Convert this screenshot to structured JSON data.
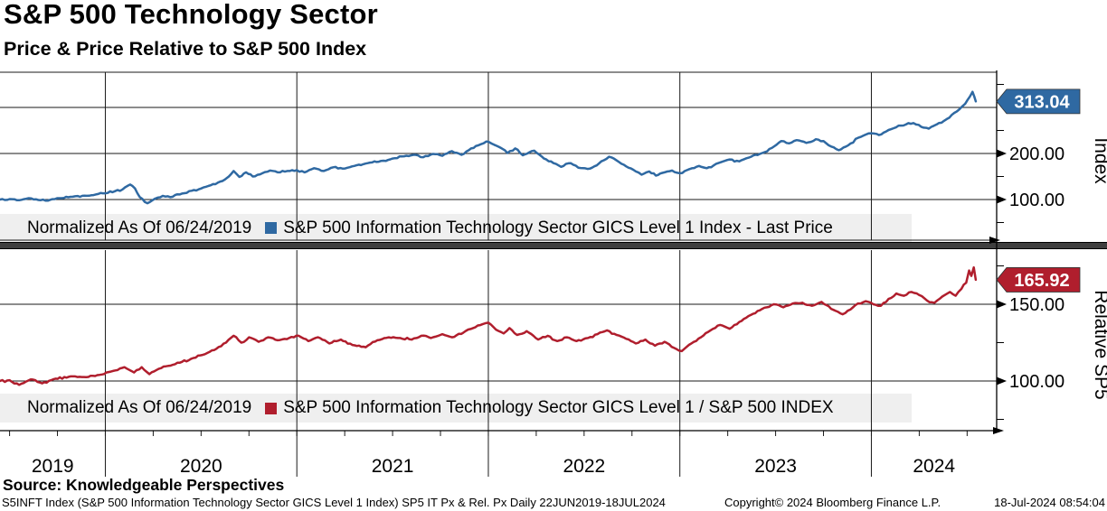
{
  "header": {
    "title": "S&P 500 Technology Sector",
    "subtitle": "Price & Price Relative to S&P 500 Index"
  },
  "chart_data": {
    "type": "line",
    "title": "S&P 500 Technology Sector",
    "subtitle": "Price & Price Relative to S&P 500 Index",
    "x_axis": {
      "year_labels": [
        "2019",
        "2020",
        "2021",
        "2022",
        "2023",
        "2024"
      ],
      "year_boundaries": [
        2020,
        2021,
        2022,
        2023,
        2024
      ],
      "range": [
        2019.45,
        2024.66
      ],
      "period_note": "Daily 22JUN2019-18JUL2024"
    },
    "panels": [
      {
        "id": "price",
        "axis_title": "Index",
        "color": "#2F69A2",
        "legend_normalized": "Normalized As Of 06/24/2019",
        "legend_series": "S&P 500 Information Technology Sector GICS Level 1 Index - Last Price",
        "last_label": "313.04",
        "last_value": 313.04,
        "major_ticks": [
          {
            "value": 100,
            "label": "100.00"
          },
          {
            "value": 200,
            "label": "200.00"
          }
        ],
        "gridlines": [
          100,
          200,
          300
        ],
        "minor_ticks": [
          50,
          150,
          250,
          350
        ],
        "points": [
          [
            2019.45,
            100
          ],
          [
            2019.5,
            101
          ],
          [
            2019.55,
            98.5
          ],
          [
            2019.6,
            103
          ],
          [
            2019.65,
            99
          ],
          [
            2019.7,
            97.5
          ],
          [
            2019.76,
            103
          ],
          [
            2019.83,
            106
          ],
          [
            2019.88,
            108
          ],
          [
            2019.95,
            111
          ],
          [
            2020.0,
            113.5
          ],
          [
            2020.05,
            118
          ],
          [
            2020.09,
            122
          ],
          [
            2020.13,
            132.5
          ],
          [
            2020.155,
            124
          ],
          [
            2020.18,
            105
          ],
          [
            2020.22,
            92
          ],
          [
            2020.26,
            102
          ],
          [
            2020.3,
            108
          ],
          [
            2020.34,
            105
          ],
          [
            2020.4,
            113
          ],
          [
            2020.45,
            119
          ],
          [
            2020.5,
            124
          ],
          [
            2020.55,
            131
          ],
          [
            2020.6,
            139
          ],
          [
            2020.645,
            150
          ],
          [
            2020.67,
            162
          ],
          [
            2020.7,
            149
          ],
          [
            2020.735,
            159
          ],
          [
            2020.77,
            150
          ],
          [
            2020.82,
            157
          ],
          [
            2020.86,
            163
          ],
          [
            2020.9,
            159
          ],
          [
            2020.95,
            162
          ],
          [
            2021.0,
            164
          ],
          [
            2021.04,
            159
          ],
          [
            2021.09,
            168
          ],
          [
            2021.14,
            162
          ],
          [
            2021.19,
            170
          ],
          [
            2021.24,
            167
          ],
          [
            2021.3,
            173
          ],
          [
            2021.37,
            179
          ],
          [
            2021.44,
            184
          ],
          [
            2021.5,
            189
          ],
          [
            2021.56,
            194
          ],
          [
            2021.62,
            197
          ],
          [
            2021.66,
            192
          ],
          [
            2021.71,
            199
          ],
          [
            2021.76,
            195
          ],
          [
            2021.81,
            205
          ],
          [
            2021.86,
            197
          ],
          [
            2021.91,
            211
          ],
          [
            2021.96,
            220
          ],
          [
            2021.99,
            226
          ],
          [
            2022.03,
            219
          ],
          [
            2022.07,
            211
          ],
          [
            2022.1,
            201
          ],
          [
            2022.14,
            211
          ],
          [
            2022.18,
            196
          ],
          [
            2022.24,
            206
          ],
          [
            2022.29,
            189
          ],
          [
            2022.34,
            179
          ],
          [
            2022.38,
            171
          ],
          [
            2022.43,
            179
          ],
          [
            2022.47,
            169
          ],
          [
            2022.53,
            167
          ],
          [
            2022.59,
            183
          ],
          [
            2022.63,
            193
          ],
          [
            2022.67,
            185
          ],
          [
            2022.72,
            172
          ],
          [
            2022.77,
            161
          ],
          [
            2022.8,
            154
          ],
          [
            2022.84,
            161
          ],
          [
            2022.875,
            152
          ],
          [
            2022.92,
            159
          ],
          [
            2022.96,
            163
          ],
          [
            2023.0,
            157
          ],
          [
            2023.05,
            166
          ],
          [
            2023.1,
            173
          ],
          [
            2023.14,
            168
          ],
          [
            2023.2,
            179
          ],
          [
            2023.26,
            187
          ],
          [
            2023.31,
            183
          ],
          [
            2023.36,
            191
          ],
          [
            2023.43,
            201
          ],
          [
            2023.48,
            212
          ],
          [
            2023.53,
            227
          ],
          [
            2023.57,
            222
          ],
          [
            2023.61,
            229
          ],
          [
            2023.66,
            223
          ],
          [
            2023.71,
            231
          ],
          [
            2023.75,
            227
          ],
          [
            2023.79,
            215
          ],
          [
            2023.83,
            207
          ],
          [
            2023.88,
            218
          ],
          [
            2023.93,
            234
          ],
          [
            2023.97,
            241
          ],
          [
            2024.0,
            244
          ],
          [
            2024.04,
            240
          ],
          [
            2024.09,
            251
          ],
          [
            2024.13,
            257
          ],
          [
            2024.18,
            263
          ],
          [
            2024.22,
            266
          ],
          [
            2024.26,
            258
          ],
          [
            2024.3,
            254
          ],
          [
            2024.34,
            263
          ],
          [
            2024.38,
            271
          ],
          [
            2024.42,
            284
          ],
          [
            2024.46,
            296
          ],
          [
            2024.49,
            308
          ],
          [
            2024.515,
            324
          ],
          [
            2024.528,
            334
          ],
          [
            2024.537,
            324
          ],
          [
            2024.545,
            313.04
          ]
        ]
      },
      {
        "id": "relative",
        "axis_title": "Relative SP5",
        "color": "#B01E2D",
        "legend_normalized": "Normalized As Of 06/24/2019",
        "legend_series": "S&P 500 Information Technology Sector GICS Level 1 / S&P 500 INDEX",
        "last_label": "165.92",
        "last_value": 165.92,
        "major_ticks": [
          {
            "value": 100,
            "label": "100.00"
          },
          {
            "value": 150,
            "label": "150.00"
          }
        ],
        "gridlines": [
          100,
          150
        ],
        "minor_ticks": [
          75,
          125,
          175
        ],
        "points": [
          [
            2019.45,
            100
          ],
          [
            2019.5,
            100.5
          ],
          [
            2019.55,
            97.5
          ],
          [
            2019.61,
            101
          ],
          [
            2019.67,
            98.5
          ],
          [
            2019.74,
            101.5
          ],
          [
            2019.82,
            103
          ],
          [
            2019.9,
            102.5
          ],
          [
            2019.97,
            104
          ],
          [
            2020.04,
            106.5
          ],
          [
            2020.1,
            109
          ],
          [
            2020.15,
            105.5
          ],
          [
            2020.19,
            109
          ],
          [
            2020.23,
            104.5
          ],
          [
            2020.28,
            108
          ],
          [
            2020.34,
            110
          ],
          [
            2020.4,
            112.5
          ],
          [
            2020.46,
            115
          ],
          [
            2020.52,
            117.5
          ],
          [
            2020.58,
            121
          ],
          [
            2020.63,
            125
          ],
          [
            2020.67,
            129.5
          ],
          [
            2020.71,
            125
          ],
          [
            2020.75,
            128.5
          ],
          [
            2020.8,
            125.5
          ],
          [
            2020.85,
            128.5
          ],
          [
            2020.9,
            126.5
          ],
          [
            2020.96,
            128
          ],
          [
            2021.01,
            129.5
          ],
          [
            2021.06,
            126
          ],
          [
            2021.11,
            128.5
          ],
          [
            2021.17,
            124.5
          ],
          [
            2021.23,
            127
          ],
          [
            2021.29,
            123.5
          ],
          [
            2021.36,
            122
          ],
          [
            2021.42,
            126.5
          ],
          [
            2021.48,
            128.5
          ],
          [
            2021.54,
            128
          ],
          [
            2021.6,
            127
          ],
          [
            2021.65,
            129.5
          ],
          [
            2021.7,
            128
          ],
          [
            2021.76,
            130.5
          ],
          [
            2021.81,
            128.5
          ],
          [
            2021.87,
            131.5
          ],
          [
            2021.92,
            134.5
          ],
          [
            2021.97,
            137
          ],
          [
            2022.0,
            138
          ],
          [
            2022.04,
            133.5
          ],
          [
            2022.08,
            131
          ],
          [
            2022.11,
            134.5
          ],
          [
            2022.15,
            130
          ],
          [
            2022.2,
            132.5
          ],
          [
            2022.26,
            127
          ],
          [
            2022.31,
            129.5
          ],
          [
            2022.36,
            126
          ],
          [
            2022.41,
            128.5
          ],
          [
            2022.46,
            126
          ],
          [
            2022.52,
            128
          ],
          [
            2022.57,
            130.5
          ],
          [
            2022.62,
            133
          ],
          [
            2022.67,
            130
          ],
          [
            2022.72,
            127.5
          ],
          [
            2022.77,
            124.5
          ],
          [
            2022.82,
            127
          ],
          [
            2022.87,
            123
          ],
          [
            2022.92,
            125.5
          ],
          [
            2022.97,
            121.5
          ],
          [
            2023.01,
            119.5
          ],
          [
            2023.06,
            124.5
          ],
          [
            2023.11,
            128.5
          ],
          [
            2023.16,
            133
          ],
          [
            2023.21,
            136.5
          ],
          [
            2023.26,
            134
          ],
          [
            2023.31,
            138.5
          ],
          [
            2023.37,
            143
          ],
          [
            2023.43,
            147
          ],
          [
            2023.49,
            150
          ],
          [
            2023.54,
            148
          ],
          [
            2023.59,
            150.5
          ],
          [
            2023.64,
            151
          ],
          [
            2023.69,
            149
          ],
          [
            2023.74,
            151.5
          ],
          [
            2023.79,
            147
          ],
          [
            2023.85,
            143.5
          ],
          [
            2023.89,
            146.5
          ],
          [
            2023.93,
            150.5
          ],
          [
            2023.97,
            152
          ],
          [
            2024.01,
            150
          ],
          [
            2024.05,
            149
          ],
          [
            2024.09,
            153.5
          ],
          [
            2024.13,
            157
          ],
          [
            2024.17,
            155.5
          ],
          [
            2024.21,
            158
          ],
          [
            2024.25,
            156
          ],
          [
            2024.29,
            152.5
          ],
          [
            2024.33,
            151
          ],
          [
            2024.37,
            155
          ],
          [
            2024.41,
            158
          ],
          [
            2024.44,
            155.5
          ],
          [
            2024.47,
            160
          ],
          [
            2024.495,
            164
          ],
          [
            2024.51,
            172
          ],
          [
            2024.522,
            168.5
          ],
          [
            2024.535,
            174
          ],
          [
            2024.545,
            165.92
          ]
        ]
      }
    ]
  },
  "footer": {
    "source": "Source: Knowledgeable Perspectives",
    "left": "S5INFT Index (S&P 500 Information Technology Sector GICS Level 1 Index) SP5 IT Px & Rel. Px  Daily 22JUN2019-18JUL2024",
    "copyright": "Copyright© 2024 Bloomberg Finance L.P.",
    "timestamp": "18-Jul-2024 08:54:04"
  }
}
